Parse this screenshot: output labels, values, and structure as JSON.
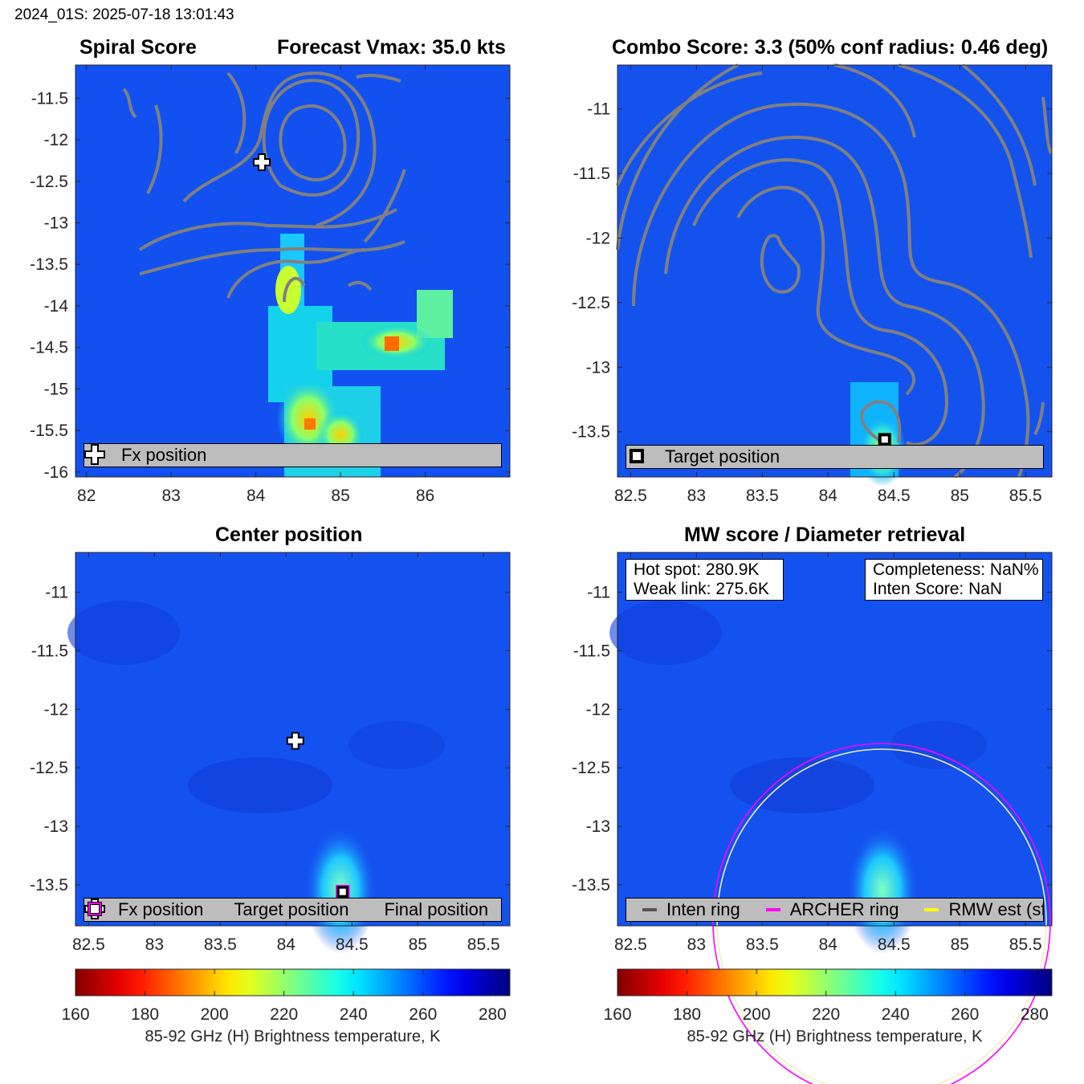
{
  "header": "2024_01S: 2025-07-18 13:01:43",
  "panels": {
    "spiral": {
      "title_left": "Spiral Score",
      "title_right": "Forecast Vmax: 35.0 kts",
      "legend": [
        "Fx position"
      ],
      "xticks": [
        "82",
        "83",
        "84",
        "85",
        "86"
      ],
      "yticks": [
        "-11.5",
        "-12",
        "-12.5",
        "-13",
        "-13.5",
        "-14",
        "-14.5",
        "-15",
        "-15.5",
        "-16"
      ],
      "xlim": [
        81.87,
        87.0
      ],
      "ylim": [
        -16.06,
        -11.1
      ]
    },
    "combo": {
      "title": "Combo Score: 3.3  (50% conf radius: 0.46 deg)",
      "legend": [
        "Target position"
      ],
      "xticks": [
        "82.5",
        "83",
        "83.5",
        "84",
        "84.5",
        "85",
        "85.5"
      ],
      "yticks": [
        "-11",
        "-11.5",
        "-12",
        "-12.5",
        "-13",
        "-13.5"
      ],
      "xlim": [
        82.4,
        85.7
      ],
      "ylim": [
        -13.85,
        -10.66
      ]
    },
    "center": {
      "title": "Center position",
      "legend": [
        "Fx position",
        "Target position",
        "Final position"
      ],
      "xticks": [
        "82.5",
        "83",
        "83.5",
        "84",
        "84.5",
        "85",
        "85.5"
      ],
      "yticks": [
        "-11",
        "-11.5",
        "-12",
        "-12.5",
        "-13",
        "-13.5"
      ],
      "xlim": [
        82.4,
        85.7
      ],
      "ylim": [
        -13.85,
        -10.66
      ]
    },
    "mw": {
      "title": "MW score / Diameter retrieval",
      "info_left": [
        "Hot spot: 280.9K",
        "Weak link: 275.6K"
      ],
      "info_right": [
        "Completeness: NaN%",
        "Inten Score: NaN"
      ],
      "legend": [
        "Inten ring",
        "ARCHER ring",
        "RMW est (sfc)"
      ],
      "xticks": [
        "82.5",
        "83",
        "83.5",
        "84",
        "84.5",
        "85",
        "85.5"
      ],
      "yticks": [
        "-11",
        "-11.5",
        "-12",
        "-12.5",
        "-13",
        "-13.5"
      ],
      "xlim": [
        82.4,
        85.7
      ],
      "ylim": [
        -13.85,
        -10.66
      ]
    }
  },
  "markers": {
    "fx_position": [
      84.07,
      -12.27
    ],
    "target_position": [
      84.43,
      -13.56
    ]
  },
  "colorbar": {
    "ticks": [
      "160",
      "180",
      "200",
      "220",
      "240",
      "260",
      "280"
    ],
    "range": [
      160,
      285
    ],
    "label": "85-92 GHz (H) Brightness temperature, K",
    "colormap": "jet-reversed"
  },
  "colors": {
    "ring_inten": "#555555",
    "ring_archer": "#ff00ff",
    "ring_rmw": "#ffff00",
    "contour": "#808080",
    "legend_bg": "#bdbdbd"
  }
}
